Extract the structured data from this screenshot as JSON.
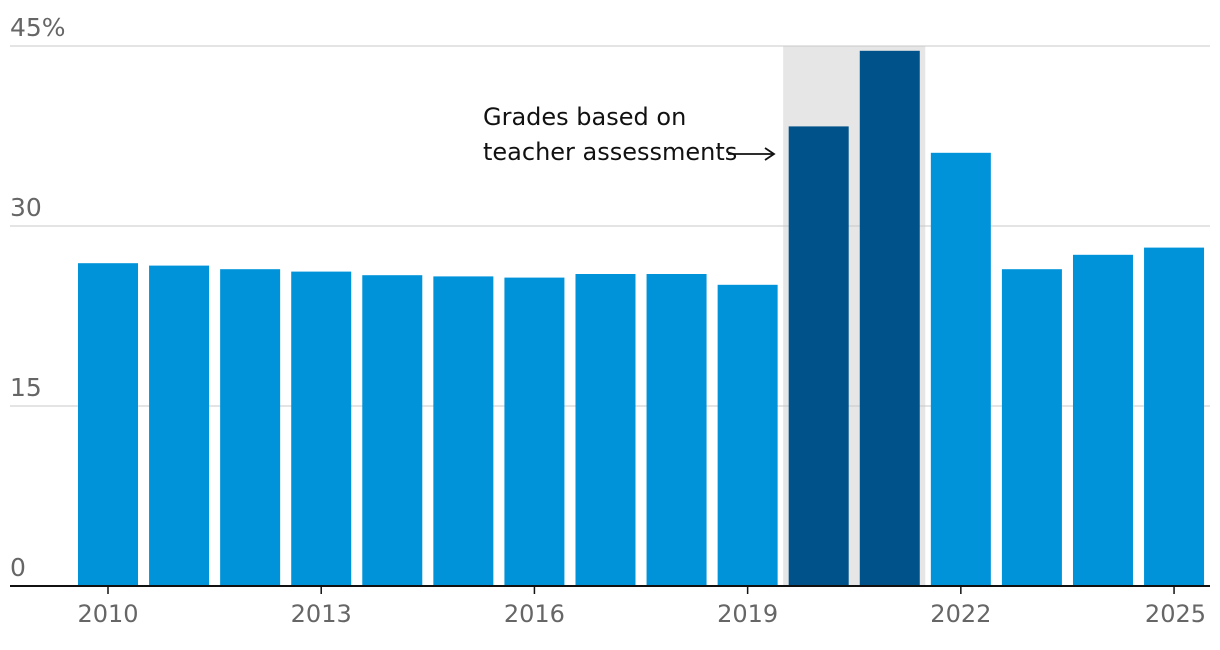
{
  "chart_data": {
    "type": "bar",
    "x": [
      2010,
      2011,
      2012,
      2013,
      2014,
      2015,
      2016,
      2017,
      2018,
      2019,
      2020,
      2021,
      2022,
      2023,
      2024,
      2025
    ],
    "values": [
      26.9,
      26.7,
      26.4,
      26.2,
      25.9,
      25.8,
      25.7,
      26.0,
      26.0,
      25.1,
      38.3,
      44.6,
      36.1,
      26.4,
      27.6,
      28.2
    ],
    "highlight_years": [
      2020,
      2021
    ],
    "ylim": [
      0,
      45
    ],
    "yticks": [
      {
        "value": 0,
        "label": "0"
      },
      {
        "value": 15,
        "label": "15"
      },
      {
        "value": 30,
        "label": "30"
      },
      {
        "value": 45,
        "label": "45%"
      }
    ],
    "xticks": [
      {
        "value": 2010,
        "label": "2010"
      },
      {
        "value": 2013,
        "label": "2013"
      },
      {
        "value": 2016,
        "label": "2016"
      },
      {
        "value": 2019,
        "label": "2019"
      },
      {
        "value": 2022,
        "label": "2022"
      },
      {
        "value": 2025,
        "label": "2025"
      }
    ],
    "annotation": {
      "lines": [
        "Grades based on",
        "teacher assessments"
      ]
    },
    "colors": {
      "bar": "#0093d9",
      "bar_highlight": "#00528a",
      "highlight_band": "#e6e6e6",
      "grid": "#c8c8c8",
      "axis": "#111111",
      "tick_label": "#666666"
    },
    "grid": true
  }
}
